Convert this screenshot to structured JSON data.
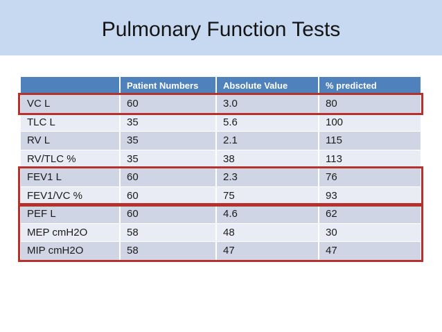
{
  "slide": {
    "title": "Pulmonary Function Tests"
  },
  "colors": {
    "band_blue": "#C6D9F1",
    "header_blue": "#4F81BD",
    "header_text": "#FFFFFF",
    "row_dark": "#CFD5E4",
    "row_light": "#E9ECF4",
    "highlight_red": "#B5312C",
    "body_text": "#1B1B1B",
    "title_text": "#141414"
  },
  "table": {
    "columns": [
      "",
      "Patient Numbers",
      "Absolute Value",
      "% predicted"
    ],
    "rows": [
      {
        "label": "VC L",
        "patient_numbers": "60",
        "absolute_value": "3.0",
        "percent_predicted": "80"
      },
      {
        "label": "TLC L",
        "patient_numbers": "35",
        "absolute_value": "5.6",
        "percent_predicted": "100"
      },
      {
        "label": "RV L",
        "patient_numbers": "35",
        "absolute_value": "2.1",
        "percent_predicted": "115"
      },
      {
        "label": "RV/TLC %",
        "patient_numbers": "35",
        "absolute_value": "38",
        "percent_predicted": "113"
      },
      {
        "label": "FEV1 L",
        "patient_numbers": "60",
        "absolute_value": "2.3",
        "percent_predicted": "76"
      },
      {
        "label": "FEV1/VC %",
        "patient_numbers": "60",
        "absolute_value": "75",
        "percent_predicted": "93"
      },
      {
        "label": "PEF L",
        "patient_numbers": "60",
        "absolute_value": "4.6",
        "percent_predicted": "62"
      },
      {
        "label": "MEP cmH2O",
        "patient_numbers": "58",
        "absolute_value": "48",
        "percent_predicted": "30"
      },
      {
        "label": "MIP cmH2O",
        "patient_numbers": "58",
        "absolute_value": "47",
        "percent_predicted": "47"
      }
    ],
    "highlight_groups": [
      {
        "name": "vc",
        "rows": [
          0
        ]
      },
      {
        "name": "fev",
        "rows": [
          4,
          5
        ]
      },
      {
        "name": "pef-mep-mip",
        "rows": [
          6,
          7,
          8
        ]
      }
    ]
  }
}
